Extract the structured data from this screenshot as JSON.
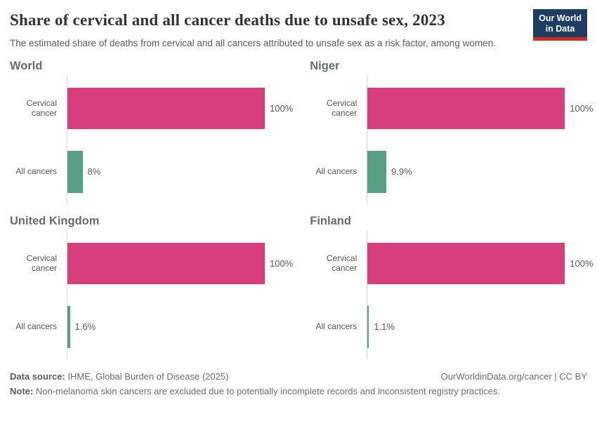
{
  "header": {
    "title": "Share of cervical and all cancer deaths due to unsafe sex, 2023",
    "subtitle": "The estimated share of deaths from cervical and all cancers attributed to unsafe sex as a risk factor, among women.",
    "logo": {
      "line1": "Our World",
      "line2": "in Data"
    }
  },
  "colors": {
    "cervical": "#d63e7c",
    "all": "#58a083",
    "logo_navy": "#1d3d63",
    "logo_red": "#cb2d27",
    "axis": "#d6d6d6"
  },
  "chart_data": [
    {
      "type": "bar",
      "orientation": "horizontal",
      "title": "World",
      "categories": [
        "Cervical cancer",
        "All cancers"
      ],
      "values": [
        100,
        8
      ],
      "value_labels": [
        "100%",
        "8%"
      ],
      "xlim": [
        0,
        100
      ],
      "grid": false,
      "legend": "none"
    },
    {
      "type": "bar",
      "orientation": "horizontal",
      "title": "Niger",
      "categories": [
        "Cervical cancer",
        "All cancers"
      ],
      "values": [
        100,
        9.9
      ],
      "value_labels": [
        "100%",
        "9.9%"
      ],
      "xlim": [
        0,
        100
      ],
      "grid": false,
      "legend": "none"
    },
    {
      "type": "bar",
      "orientation": "horizontal",
      "title": "United Kingdom",
      "categories": [
        "Cervical cancer",
        "All cancers"
      ],
      "values": [
        100,
        1.6
      ],
      "value_labels": [
        "100%",
        "1.6%"
      ],
      "xlim": [
        0,
        100
      ],
      "grid": false,
      "legend": "none"
    },
    {
      "type": "bar",
      "orientation": "horizontal",
      "title": "Finland",
      "categories": [
        "Cervical cancer",
        "All cancers"
      ],
      "values": [
        100,
        1.1
      ],
      "value_labels": [
        "100%",
        "1.1%"
      ],
      "xlim": [
        0,
        100
      ],
      "grid": false,
      "legend": "none"
    }
  ],
  "footer": {
    "datasource_label": "Data source:",
    "datasource_text": " IHME, Global Burden of Disease (2025)",
    "citation": "OurWorldinData.org/cancer | CC BY",
    "note_label": "Note:",
    "note_text": " Non-melanoma skin cancers are excluded due to potentially incomplete records and inconsistent registry practices."
  }
}
